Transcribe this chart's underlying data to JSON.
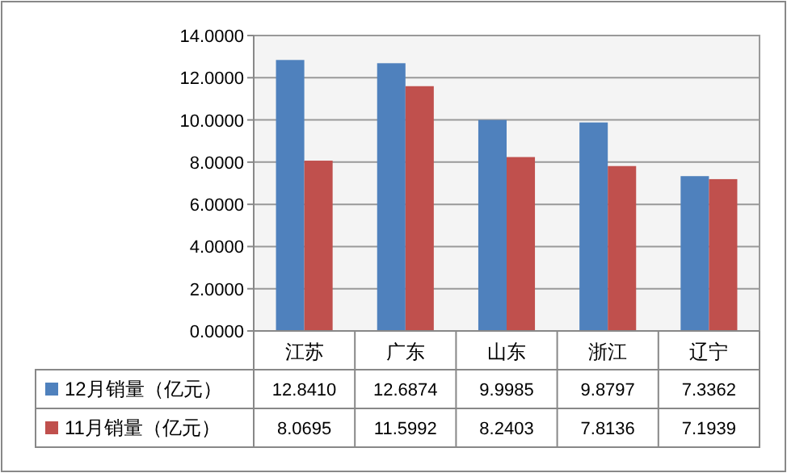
{
  "chart_data": {
    "type": "bar",
    "categories": [
      "江苏",
      "广东",
      "山东",
      "浙江",
      "辽宁"
    ],
    "series": [
      {
        "name": "12月销量（亿元）",
        "color": "#4f81bd",
        "values": [
          12.841,
          12.6874,
          9.9985,
          9.8797,
          7.3362
        ],
        "value_labels": [
          "12.8410",
          "12.6874",
          "9.9985",
          "9.8797",
          "7.3362"
        ]
      },
      {
        "name": "11月销量（亿元）",
        "color": "#c0504d",
        "values": [
          8.0695,
          11.5992,
          8.2403,
          7.8136,
          7.1939
        ],
        "value_labels": [
          "8.0695",
          "11.5992",
          "8.2403",
          "7.8136",
          "7.1939"
        ]
      }
    ],
    "ylim": [
      0,
      14
    ],
    "yticks": [
      {
        "value": 0,
        "label": "0.0000"
      },
      {
        "value": 2,
        "label": "2.0000"
      },
      {
        "value": 4,
        "label": "4.0000"
      },
      {
        "value": 6,
        "label": "6.0000"
      },
      {
        "value": 8,
        "label": "8.0000"
      },
      {
        "value": 10,
        "label": "10.0000"
      },
      {
        "value": 12,
        "label": "12.0000"
      },
      {
        "value": 14,
        "label": "14.0000"
      }
    ],
    "grid": "y",
    "legend": "bottom"
  }
}
